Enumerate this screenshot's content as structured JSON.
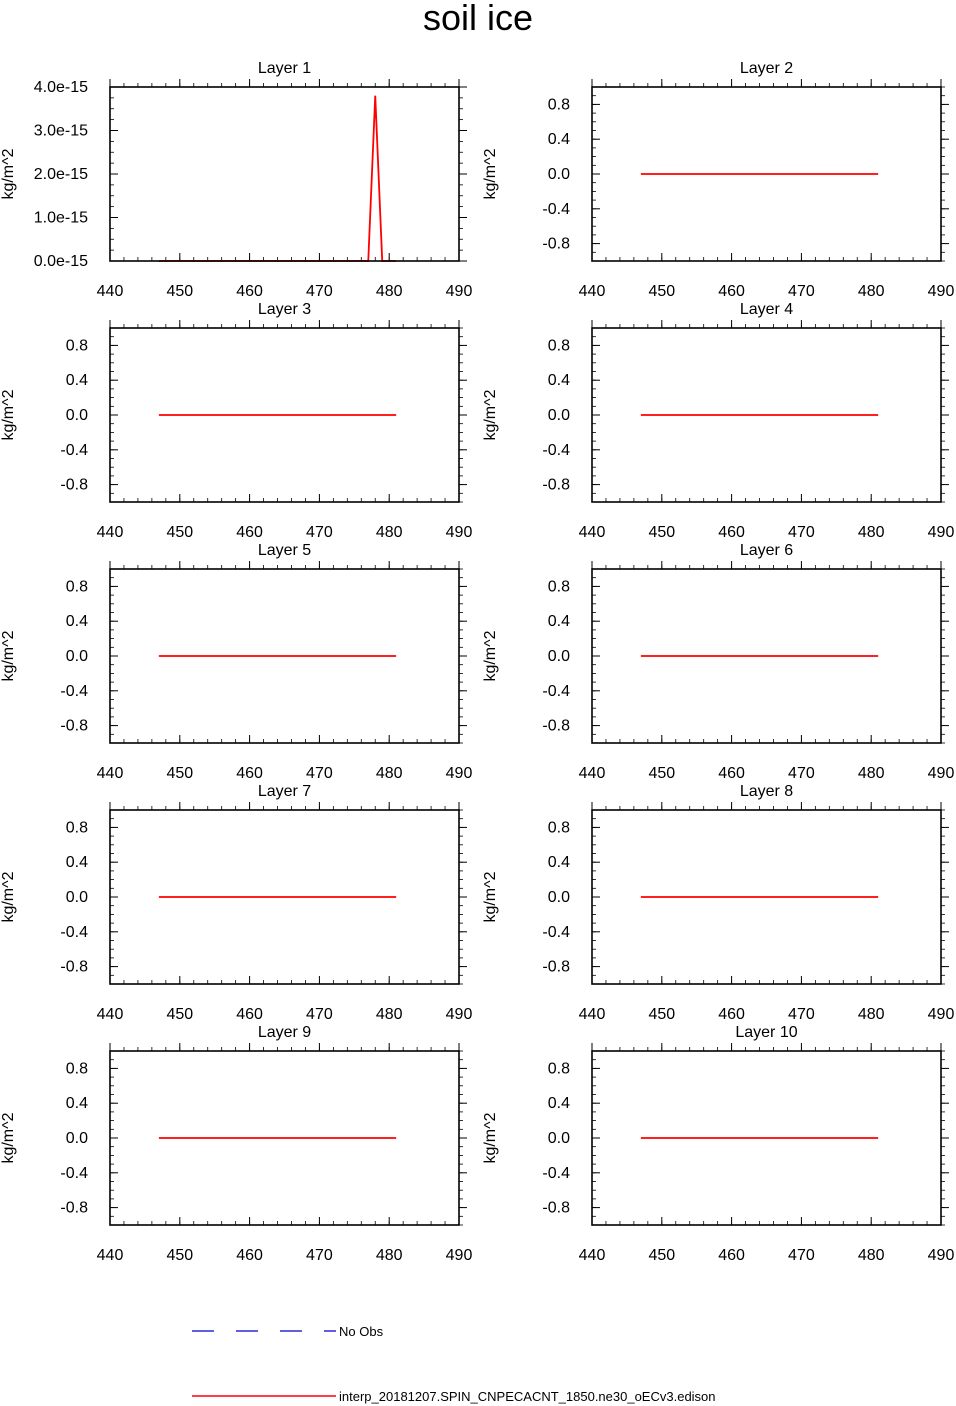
{
  "figure_title": "soil ice",
  "legend": {
    "obs_label": "No Obs",
    "model_label": "interp_20181207.SPIN_CNPECACNT_1850.ne30_oECv3.edison"
  },
  "colors": {
    "obs": "#0000cc",
    "model": "#ff0000",
    "axes": "#000000"
  },
  "chart_data": [
    {
      "type": "line",
      "title": "Layer 1",
      "xlabel": "",
      "ylabel": "kg/m^2",
      "xlim": [
        440,
        490
      ],
      "ylim": [
        0,
        4e-15
      ],
      "xticks": [
        440,
        450,
        460,
        470,
        480,
        490
      ],
      "xtick_labels": [
        "440",
        "450",
        "460",
        "470",
        "480",
        "490"
      ],
      "yticks": [
        0,
        1e-15,
        2e-15,
        3e-15,
        4e-15
      ],
      "ytick_labels": [
        "0.0e-15",
        "1.0e-15",
        "2.0e-15",
        "3.0e-15",
        "4.0e-15"
      ],
      "series": [
        {
          "name": "interp_20181207.SPIN_CNPECACNT_1850.ne30_oECv3.edison",
          "x": [
            447,
            477,
            478,
            479,
            481
          ],
          "y": [
            0,
            0,
            3.8e-15,
            0,
            0
          ]
        }
      ]
    },
    {
      "type": "line",
      "title": "Layer 2",
      "xlabel": "",
      "ylabel": "kg/m^2",
      "xlim": [
        440,
        490
      ],
      "ylim": [
        -1,
        1
      ],
      "xticks": [
        440,
        450,
        460,
        470,
        480,
        490
      ],
      "xtick_labels": [
        "440",
        "450",
        "460",
        "470",
        "480",
        "490"
      ],
      "yticks": [
        -0.8,
        -0.4,
        0,
        0.4,
        0.8
      ],
      "ytick_labels": [
        "-0.8",
        "-0.4",
        "0.0",
        "0.4",
        "0.8"
      ],
      "series": [
        {
          "name": "interp_20181207.SPIN_CNPECACNT_1850.ne30_oECv3.edison",
          "x": [
            447,
            481
          ],
          "y": [
            0,
            0
          ]
        }
      ]
    },
    {
      "type": "line",
      "title": "Layer 3",
      "xlabel": "",
      "ylabel": "kg/m^2",
      "xlim": [
        440,
        490
      ],
      "ylim": [
        -1,
        1
      ],
      "xticks": [
        440,
        450,
        460,
        470,
        480,
        490
      ],
      "xtick_labels": [
        "440",
        "450",
        "460",
        "470",
        "480",
        "490"
      ],
      "yticks": [
        -0.8,
        -0.4,
        0,
        0.4,
        0.8
      ],
      "ytick_labels": [
        "-0.8",
        "-0.4",
        "0.0",
        "0.4",
        "0.8"
      ],
      "series": [
        {
          "name": "interp_20181207.SPIN_CNPECACNT_1850.ne30_oECv3.edison",
          "x": [
            447,
            481
          ],
          "y": [
            0,
            0
          ]
        }
      ]
    },
    {
      "type": "line",
      "title": "Layer 4",
      "xlabel": "",
      "ylabel": "kg/m^2",
      "xlim": [
        440,
        490
      ],
      "ylim": [
        -1,
        1
      ],
      "xticks": [
        440,
        450,
        460,
        470,
        480,
        490
      ],
      "xtick_labels": [
        "440",
        "450",
        "460",
        "470",
        "480",
        "490"
      ],
      "yticks": [
        -0.8,
        -0.4,
        0,
        0.4,
        0.8
      ],
      "ytick_labels": [
        "-0.8",
        "-0.4",
        "0.0",
        "0.4",
        "0.8"
      ],
      "series": [
        {
          "name": "interp_20181207.SPIN_CNPECACNT_1850.ne30_oECv3.edison",
          "x": [
            447,
            481
          ],
          "y": [
            0,
            0
          ]
        }
      ]
    },
    {
      "type": "line",
      "title": "Layer 5",
      "xlabel": "",
      "ylabel": "kg/m^2",
      "xlim": [
        440,
        490
      ],
      "ylim": [
        -1,
        1
      ],
      "xticks": [
        440,
        450,
        460,
        470,
        480,
        490
      ],
      "xtick_labels": [
        "440",
        "450",
        "460",
        "470",
        "480",
        "490"
      ],
      "yticks": [
        -0.8,
        -0.4,
        0,
        0.4,
        0.8
      ],
      "ytick_labels": [
        "-0.8",
        "-0.4",
        "0.0",
        "0.4",
        "0.8"
      ],
      "series": [
        {
          "name": "interp_20181207.SPIN_CNPECACNT_1850.ne30_oECv3.edison",
          "x": [
            447,
            481
          ],
          "y": [
            0,
            0
          ]
        }
      ]
    },
    {
      "type": "line",
      "title": "Layer 6",
      "xlabel": "",
      "ylabel": "kg/m^2",
      "xlim": [
        440,
        490
      ],
      "ylim": [
        -1,
        1
      ],
      "xticks": [
        440,
        450,
        460,
        470,
        480,
        490
      ],
      "xtick_labels": [
        "440",
        "450",
        "460",
        "470",
        "480",
        "490"
      ],
      "yticks": [
        -0.8,
        -0.4,
        0,
        0.4,
        0.8
      ],
      "ytick_labels": [
        "-0.8",
        "-0.4",
        "0.0",
        "0.4",
        "0.8"
      ],
      "series": [
        {
          "name": "interp_20181207.SPIN_CNPECACNT_1850.ne30_oECv3.edison",
          "x": [
            447,
            481
          ],
          "y": [
            0,
            0
          ]
        }
      ]
    },
    {
      "type": "line",
      "title": "Layer 7",
      "xlabel": "",
      "ylabel": "kg/m^2",
      "xlim": [
        440,
        490
      ],
      "ylim": [
        -1,
        1
      ],
      "xticks": [
        440,
        450,
        460,
        470,
        480,
        490
      ],
      "xtick_labels": [
        "440",
        "450",
        "460",
        "470",
        "480",
        "490"
      ],
      "yticks": [
        -0.8,
        -0.4,
        0,
        0.4,
        0.8
      ],
      "ytick_labels": [
        "-0.8",
        "-0.4",
        "0.0",
        "0.4",
        "0.8"
      ],
      "series": [
        {
          "name": "interp_20181207.SPIN_CNPECACNT_1850.ne30_oECv3.edison",
          "x": [
            447,
            481
          ],
          "y": [
            0,
            0
          ]
        }
      ]
    },
    {
      "type": "line",
      "title": "Layer 8",
      "xlabel": "",
      "ylabel": "kg/m^2",
      "xlim": [
        440,
        490
      ],
      "ylim": [
        -1,
        1
      ],
      "xticks": [
        440,
        450,
        460,
        470,
        480,
        490
      ],
      "xtick_labels": [
        "440",
        "450",
        "460",
        "470",
        "480",
        "490"
      ],
      "yticks": [
        -0.8,
        -0.4,
        0,
        0.4,
        0.8
      ],
      "ytick_labels": [
        "-0.8",
        "-0.4",
        "0.0",
        "0.4",
        "0.8"
      ],
      "series": [
        {
          "name": "interp_20181207.SPIN_CNPECACNT_1850.ne30_oECv3.edison",
          "x": [
            447,
            481
          ],
          "y": [
            0,
            0
          ]
        }
      ]
    },
    {
      "type": "line",
      "title": "Layer 9",
      "xlabel": "",
      "ylabel": "kg/m^2",
      "xlim": [
        440,
        490
      ],
      "ylim": [
        -1,
        1
      ],
      "xticks": [
        440,
        450,
        460,
        470,
        480,
        490
      ],
      "xtick_labels": [
        "440",
        "450",
        "460",
        "470",
        "480",
        "490"
      ],
      "yticks": [
        -0.8,
        -0.4,
        0,
        0.4,
        0.8
      ],
      "ytick_labels": [
        "-0.8",
        "-0.4",
        "0.0",
        "0.4",
        "0.8"
      ],
      "series": [
        {
          "name": "interp_20181207.SPIN_CNPECACNT_1850.ne30_oECv3.edison",
          "x": [
            447,
            481
          ],
          "y": [
            0,
            0
          ]
        }
      ]
    },
    {
      "type": "line",
      "title": "Layer 10",
      "xlabel": "",
      "ylabel": "kg/m^2",
      "xlim": [
        440,
        490
      ],
      "ylim": [
        -1,
        1
      ],
      "xticks": [
        440,
        450,
        460,
        470,
        480,
        490
      ],
      "xtick_labels": [
        "440",
        "450",
        "460",
        "470",
        "480",
        "490"
      ],
      "yticks": [
        -0.8,
        -0.4,
        0,
        0.4,
        0.8
      ],
      "ytick_labels": [
        "-0.8",
        "-0.4",
        "0.0",
        "0.4",
        "0.8"
      ],
      "series": [
        {
          "name": "interp_20181207.SPIN_CNPECACNT_1850.ne30_oECv3.edison",
          "x": [
            447,
            481
          ],
          "y": [
            0,
            0
          ]
        }
      ]
    }
  ]
}
